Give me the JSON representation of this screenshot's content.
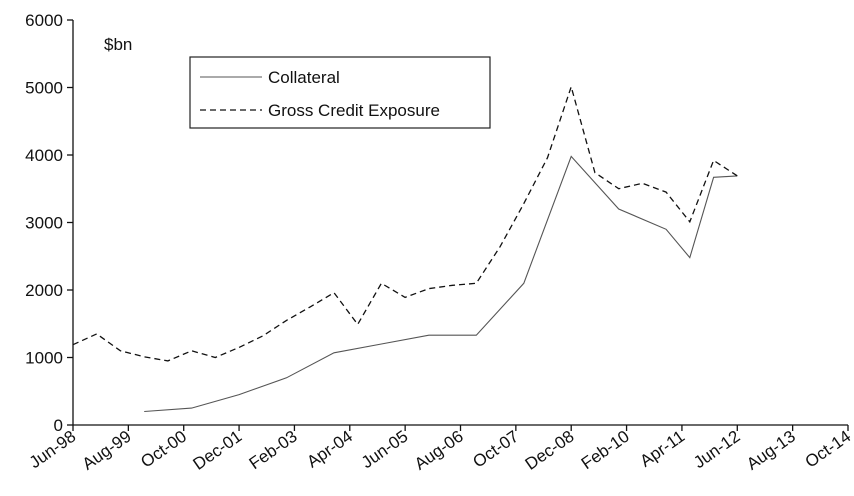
{
  "chart_data": {
    "type": "line",
    "ylabel": "$bn",
    "ylim": [
      0,
      6000
    ],
    "y_ticks": [
      "0",
      "1000",
      "2000",
      "3000",
      "4000",
      "5000",
      "6000"
    ],
    "x_ticks": [
      "Jun-98",
      "Aug-99",
      "Oct-00",
      "Dec-01",
      "Feb-03",
      "Apr-04",
      "Jun-05",
      "Aug-06",
      "Oct-07",
      "Dec-08",
      "Feb-10",
      "Apr-11",
      "Jun-12",
      "Aug-13",
      "Oct-14"
    ],
    "x_range": [
      "1998-06",
      "2014-10"
    ],
    "grid": false,
    "legend_position": "top-left",
    "series": [
      {
        "name": "Collateral",
        "style": "solid",
        "color": "#555555",
        "points": [
          {
            "x": "1999-12",
            "y": 200
          },
          {
            "x": "2000-12",
            "y": 250
          },
          {
            "x": "2001-12",
            "y": 450
          },
          {
            "x": "2002-12",
            "y": 700
          },
          {
            "x": "2003-12",
            "y": 1070
          },
          {
            "x": "2004-12",
            "y": 1200
          },
          {
            "x": "2005-12",
            "y": 1330
          },
          {
            "x": "2006-12",
            "y": 1330
          },
          {
            "x": "2007-12",
            "y": 2100
          },
          {
            "x": "2008-12",
            "y": 3980
          },
          {
            "x": "2009-12",
            "y": 3200
          },
          {
            "x": "2010-12",
            "y": 2900
          },
          {
            "x": "2011-06",
            "y": 2480
          },
          {
            "x": "2011-12",
            "y": 3670
          },
          {
            "x": "2012-06",
            "y": 3690
          }
        ]
      },
      {
        "name": "Gross Credit Exposure",
        "style": "dashed",
        "color": "#111111",
        "points": [
          {
            "x": "1998-06",
            "y": 1190
          },
          {
            "x": "1998-12",
            "y": 1350
          },
          {
            "x": "1999-06",
            "y": 1100
          },
          {
            "x": "1999-12",
            "y": 1010
          },
          {
            "x": "2000-06",
            "y": 950
          },
          {
            "x": "2000-12",
            "y": 1100
          },
          {
            "x": "2001-06",
            "y": 1000
          },
          {
            "x": "2001-12",
            "y": 1150
          },
          {
            "x": "2002-06",
            "y": 1320
          },
          {
            "x": "2002-12",
            "y": 1550
          },
          {
            "x": "2003-06",
            "y": 1750
          },
          {
            "x": "2003-12",
            "y": 1960
          },
          {
            "x": "2004-06",
            "y": 1490
          },
          {
            "x": "2004-12",
            "y": 2100
          },
          {
            "x": "2005-06",
            "y": 1890
          },
          {
            "x": "2005-12",
            "y": 2020
          },
          {
            "x": "2006-06",
            "y": 2070
          },
          {
            "x": "2006-12",
            "y": 2100
          },
          {
            "x": "2007-06",
            "y": 2640
          },
          {
            "x": "2007-12",
            "y": 3280
          },
          {
            "x": "2008-06",
            "y": 3960
          },
          {
            "x": "2008-12",
            "y": 5010
          },
          {
            "x": "2009-06",
            "y": 3740
          },
          {
            "x": "2009-12",
            "y": 3500
          },
          {
            "x": "2010-06",
            "y": 3580
          },
          {
            "x": "2010-12",
            "y": 3450
          },
          {
            "x": "2011-06",
            "y": 3010
          },
          {
            "x": "2011-12",
            "y": 3920
          },
          {
            "x": "2012-06",
            "y": 3690
          }
        ]
      }
    ]
  }
}
